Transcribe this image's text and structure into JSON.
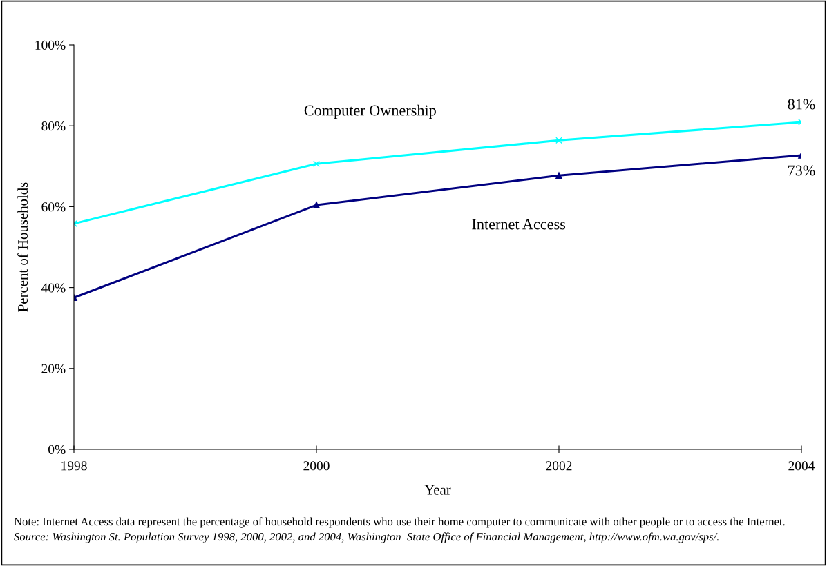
{
  "chart_data": {
    "type": "line",
    "xlabel": "Year",
    "ylabel": "Percent of Households",
    "x": [
      1998,
      2000,
      2002,
      2004
    ],
    "series": [
      {
        "name": "Computer Ownership",
        "color": "#00ffff",
        "marker": "cross",
        "values": [
          55.8,
          70.6,
          76.4,
          80.9
        ],
        "value_labels": [
          null,
          null,
          null,
          "81%"
        ]
      },
      {
        "name": "Internet Access",
        "color": "#000080",
        "marker": "triangle",
        "values": [
          37.5,
          60.4,
          67.7,
          72.7
        ],
        "value_labels": [
          null,
          null,
          null,
          "73%"
        ]
      }
    ],
    "xlim": [
      1998,
      2004
    ],
    "xticks": [
      1998,
      2000,
      2002,
      2004
    ],
    "ylim": [
      0,
      100
    ],
    "yticks": [
      {
        "value": 0,
        "label": "0%"
      },
      {
        "value": 20,
        "label": "20%"
      },
      {
        "value": 40,
        "label": "40%"
      },
      {
        "value": 60,
        "label": "60%"
      },
      {
        "value": 80,
        "label": "80%"
      },
      {
        "value": 100,
        "label": "100%"
      }
    ],
    "grid": false,
    "legend": false,
    "line_style": "solid",
    "annotations": [
      "Note: Internet Access data represent the percentage of household respondents who use their home computer to communicate with other people or to access the Internet.",
      "Source: Washington St. Population Survey 1998, 2000, 2002, and 2004, Washington  State Office of Financial Management, http://www.ofm.wa.gov/sps/."
    ]
  }
}
